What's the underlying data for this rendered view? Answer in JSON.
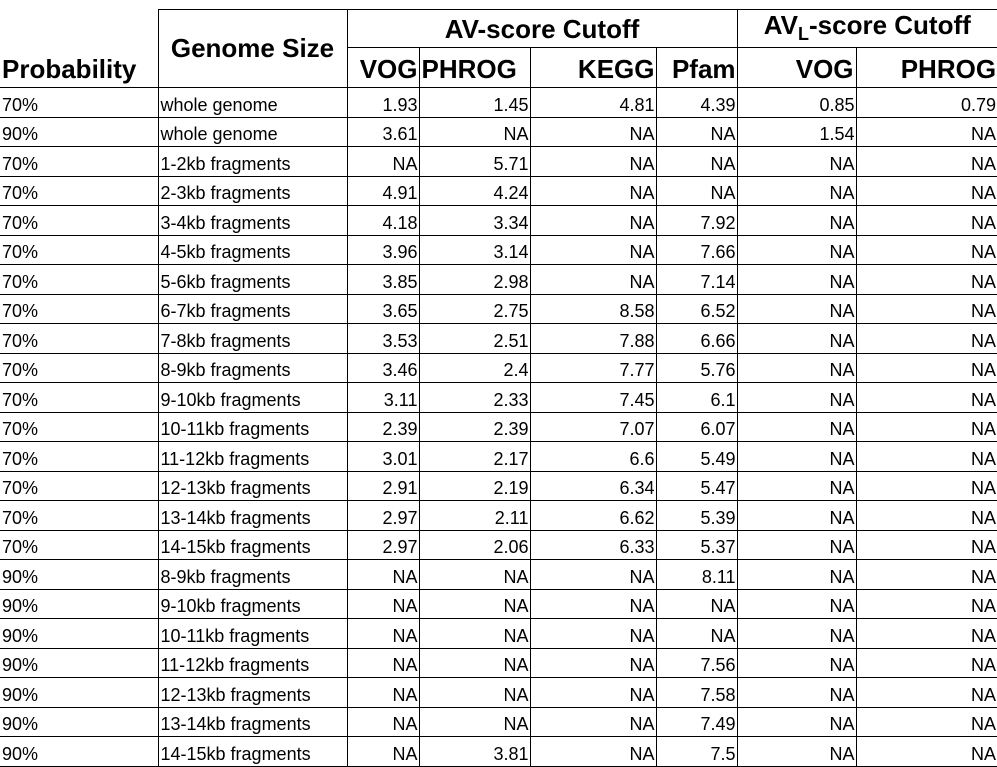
{
  "header": {
    "probability": "Probability",
    "genome_size": "Genome Size",
    "av_group": "AV-score Cutoff",
    "avl_group_prefix": "AV",
    "avl_group_sub": "L",
    "avl_group_suffix": "-score Cutoff",
    "columns": [
      "VOG",
      "PHROG",
      "KEGG",
      "Pfam",
      "VOG",
      "PHROG"
    ]
  },
  "rows": [
    {
      "probability": "70%",
      "genome_size": "whole genome",
      "values": [
        "1.93",
        "1.45",
        "4.81",
        "4.39",
        "0.85",
        "0.79"
      ]
    },
    {
      "probability": "90%",
      "genome_size": "whole genome",
      "values": [
        "3.61",
        "NA",
        "NA",
        "NA",
        "1.54",
        "NA"
      ]
    },
    {
      "probability": "70%",
      "genome_size": "1-2kb fragments",
      "values": [
        "NA",
        "5.71",
        "NA",
        "NA",
        "NA",
        "NA"
      ]
    },
    {
      "probability": "70%",
      "genome_size": "2-3kb fragments",
      "values": [
        "4.91",
        "4.24",
        "NA",
        "NA",
        "NA",
        "NA"
      ]
    },
    {
      "probability": "70%",
      "genome_size": "3-4kb fragments",
      "values": [
        "4.18",
        "3.34",
        "NA",
        "7.92",
        "NA",
        "NA"
      ]
    },
    {
      "probability": "70%",
      "genome_size": "4-5kb fragments",
      "values": [
        "3.96",
        "3.14",
        "NA",
        "7.66",
        "NA",
        "NA"
      ]
    },
    {
      "probability": "70%",
      "genome_size": "5-6kb fragments",
      "values": [
        "3.85",
        "2.98",
        "NA",
        "7.14",
        "NA",
        "NA"
      ]
    },
    {
      "probability": "70%",
      "genome_size": "6-7kb fragments",
      "values": [
        "3.65",
        "2.75",
        "8.58",
        "6.52",
        "NA",
        "NA"
      ]
    },
    {
      "probability": "70%",
      "genome_size": "7-8kb fragments",
      "values": [
        "3.53",
        "2.51",
        "7.88",
        "6.66",
        "NA",
        "NA"
      ]
    },
    {
      "probability": "70%",
      "genome_size": "8-9kb fragments",
      "values": [
        "3.46",
        "2.4",
        "7.77",
        "5.76",
        "NA",
        "NA"
      ]
    },
    {
      "probability": "70%",
      "genome_size": "9-10kb fragments",
      "values": [
        "3.11",
        "2.33",
        "7.45",
        "6.1",
        "NA",
        "NA"
      ]
    },
    {
      "probability": "70%",
      "genome_size": "10-11kb fragments",
      "values": [
        "2.39",
        "2.39",
        "7.07",
        "6.07",
        "NA",
        "NA"
      ]
    },
    {
      "probability": "70%",
      "genome_size": "11-12kb fragments",
      "values": [
        "3.01",
        "2.17",
        "6.6",
        "5.49",
        "NA",
        "NA"
      ]
    },
    {
      "probability": "70%",
      "genome_size": "12-13kb fragments",
      "values": [
        "2.91",
        "2.19",
        "6.34",
        "5.47",
        "NA",
        "NA"
      ]
    },
    {
      "probability": "70%",
      "genome_size": "13-14kb fragments",
      "values": [
        "2.97",
        "2.11",
        "6.62",
        "5.39",
        "NA",
        "NA"
      ]
    },
    {
      "probability": "70%",
      "genome_size": "14-15kb fragments",
      "values": [
        "2.97",
        "2.06",
        "6.33",
        "5.37",
        "NA",
        "NA"
      ]
    },
    {
      "probability": "90%",
      "genome_size": "8-9kb fragments",
      "values": [
        "NA",
        "NA",
        "NA",
        "8.11",
        "NA",
        "NA"
      ]
    },
    {
      "probability": "90%",
      "genome_size": "9-10kb fragments",
      "values": [
        "NA",
        "NA",
        "NA",
        "NA",
        "NA",
        "NA"
      ]
    },
    {
      "probability": "90%",
      "genome_size": "10-11kb fragments",
      "values": [
        "NA",
        "NA",
        "NA",
        "NA",
        "NA",
        "NA"
      ]
    },
    {
      "probability": "90%",
      "genome_size": "11-12kb fragments",
      "values": [
        "NA",
        "NA",
        "NA",
        "7.56",
        "NA",
        "NA"
      ]
    },
    {
      "probability": "90%",
      "genome_size": "12-13kb fragments",
      "values": [
        "NA",
        "NA",
        "NA",
        "7.58",
        "NA",
        "NA"
      ]
    },
    {
      "probability": "90%",
      "genome_size": "13-14kb fragments",
      "values": [
        "NA",
        "NA",
        "NA",
        "7.49",
        "NA",
        "NA"
      ]
    },
    {
      "probability": "90%",
      "genome_size": "14-15kb fragments",
      "values": [
        "NA",
        "3.81",
        "NA",
        "7.5",
        "NA",
        "NA"
      ]
    }
  ]
}
